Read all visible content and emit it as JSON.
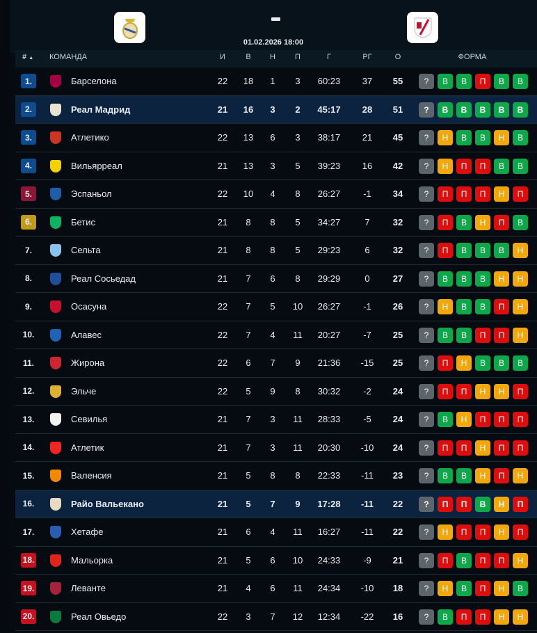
{
  "match": {
    "home_crest": "real-madrid-crest",
    "away_crest": "rayo-vallecano-crest",
    "score": "-",
    "datetime": "01.02.2026 18:00"
  },
  "header": {
    "rank": "#",
    "sort_icon": "▲",
    "team": "КОМАНДА",
    "played": "И",
    "won": "В",
    "drawn": "Н",
    "lost": "П",
    "goals": "Г",
    "diff": "РГ",
    "points": "О",
    "form": "ФОРМА"
  },
  "colors": {
    "W": "#0ea84a",
    "D": "#f2a70d",
    "L": "#dd0e0e",
    "next": "#5c646c",
    "cl": "#0e4c8f",
    "el": "#8a1738",
    "conf": "#c19a1a",
    "releg": "#c8101e",
    "highlight": "#0c2340"
  },
  "form_labels": {
    "W": "В",
    "D": "Н",
    "L": "П",
    "next": "?"
  },
  "rows": [
    {
      "rank": "1.",
      "zone": "cl",
      "team": "Барселона",
      "logo": "#a50044",
      "p": "22",
      "w": "18",
      "d": "1",
      "l": "3",
      "g": "60:23",
      "gd": "37",
      "pts": "55",
      "form": [
        "W",
        "W",
        "L",
        "W",
        "W"
      ]
    },
    {
      "rank": "2.",
      "zone": "cl",
      "team": "Реал Мадрид",
      "logo": "#e8e4d0",
      "hl": true,
      "p": "21",
      "w": "16",
      "d": "3",
      "l": "2",
      "g": "45:17",
      "gd": "28",
      "pts": "51",
      "form": [
        "W",
        "W",
        "W",
        "W",
        "W"
      ]
    },
    {
      "rank": "3.",
      "zone": "cl",
      "team": "Атлетико",
      "logo": "#cb3524",
      "p": "22",
      "w": "13",
      "d": "6",
      "l": "3",
      "g": "38:17",
      "gd": "21",
      "pts": "45",
      "form": [
        "D",
        "W",
        "W",
        "D",
        "W"
      ]
    },
    {
      "rank": "4.",
      "zone": "cl",
      "team": "Вильярреал",
      "logo": "#f5d100",
      "p": "21",
      "w": "13",
      "d": "3",
      "l": "5",
      "g": "39:23",
      "gd": "16",
      "pts": "42",
      "form": [
        "D",
        "L",
        "L",
        "W",
        "W"
      ]
    },
    {
      "rank": "5.",
      "zone": "el",
      "team": "Эспаньол",
      "logo": "#1d5ea8",
      "p": "22",
      "w": "10",
      "d": "4",
      "l": "8",
      "g": "26:27",
      "gd": "-1",
      "pts": "34",
      "form": [
        "L",
        "L",
        "L",
        "D",
        "L"
      ]
    },
    {
      "rank": "6.",
      "zone": "conf",
      "team": "Бетис",
      "logo": "#0bb363",
      "p": "21",
      "w": "8",
      "d": "8",
      "l": "5",
      "g": "34:27",
      "gd": "7",
      "pts": "32",
      "form": [
        "L",
        "W",
        "D",
        "L",
        "W"
      ]
    },
    {
      "rank": "7.",
      "zone": "",
      "team": "Сельта",
      "logo": "#8ac3ee",
      "p": "21",
      "w": "8",
      "d": "8",
      "l": "5",
      "g": "29:23",
      "gd": "6",
      "pts": "32",
      "form": [
        "L",
        "W",
        "W",
        "W",
        "D"
      ]
    },
    {
      "rank": "8.",
      "zone": "",
      "team": "Реал Сосьедад",
      "logo": "#1f4f9c",
      "p": "21",
      "w": "7",
      "d": "6",
      "l": "8",
      "g": "29:29",
      "gd": "0",
      "pts": "27",
      "form": [
        "W",
        "W",
        "W",
        "D",
        "D"
      ]
    },
    {
      "rank": "9.",
      "zone": "",
      "team": "Осасуна",
      "logo": "#c6102e",
      "p": "22",
      "w": "7",
      "d": "5",
      "l": "10",
      "g": "26:27",
      "gd": "-1",
      "pts": "26",
      "form": [
        "D",
        "W",
        "W",
        "L",
        "D"
      ]
    },
    {
      "rank": "10.",
      "zone": "",
      "team": "Алавес",
      "logo": "#1e63b5",
      "p": "22",
      "w": "7",
      "d": "4",
      "l": "11",
      "g": "20:27",
      "gd": "-7",
      "pts": "25",
      "form": [
        "W",
        "W",
        "L",
        "L",
        "D"
      ]
    },
    {
      "rank": "11.",
      "zone": "",
      "team": "Жирона",
      "logo": "#cd2534",
      "p": "22",
      "w": "6",
      "d": "7",
      "l": "9",
      "g": "21:36",
      "gd": "-15",
      "pts": "25",
      "form": [
        "L",
        "D",
        "W",
        "W",
        "W"
      ]
    },
    {
      "rank": "12.",
      "zone": "",
      "team": "Эльче",
      "logo": "#e0b030",
      "p": "22",
      "w": "5",
      "d": "9",
      "l": "8",
      "g": "30:32",
      "gd": "-2",
      "pts": "24",
      "form": [
        "L",
        "L",
        "D",
        "D",
        "L"
      ]
    },
    {
      "rank": "13.",
      "zone": "",
      "team": "Севилья",
      "logo": "#f2f2f2",
      "p": "21",
      "w": "7",
      "d": "3",
      "l": "11",
      "g": "28:33",
      "gd": "-5",
      "pts": "24",
      "form": [
        "W",
        "D",
        "L",
        "L",
        "L"
      ]
    },
    {
      "rank": "14.",
      "zone": "",
      "team": "Атлетик",
      "logo": "#ee2523",
      "p": "21",
      "w": "7",
      "d": "3",
      "l": "11",
      "g": "20:30",
      "gd": "-10",
      "pts": "24",
      "form": [
        "L",
        "L",
        "D",
        "L",
        "L"
      ]
    },
    {
      "rank": "15.",
      "zone": "",
      "team": "Валенсия",
      "logo": "#f18a00",
      "p": "21",
      "w": "5",
      "d": "8",
      "l": "8",
      "g": "22:33",
      "gd": "-11",
      "pts": "23",
      "form": [
        "W",
        "W",
        "D",
        "L",
        "D"
      ]
    },
    {
      "rank": "16.",
      "zone": "",
      "team": "Райо Вальекано",
      "logo": "#e8dcc0",
      "hl": true,
      "p": "21",
      "w": "5",
      "d": "7",
      "l": "9",
      "g": "17:28",
      "gd": "-11",
      "pts": "22",
      "form": [
        "L",
        "L",
        "W",
        "D",
        "L"
      ]
    },
    {
      "rank": "17.",
      "zone": "",
      "team": "Хетафе",
      "logo": "#2a5db0",
      "p": "21",
      "w": "6",
      "d": "4",
      "l": "11",
      "g": "16:27",
      "gd": "-11",
      "pts": "22",
      "form": [
        "D",
        "L",
        "L",
        "D",
        "L"
      ]
    },
    {
      "rank": "18.",
      "zone": "releg",
      "team": "Мальорка",
      "logo": "#e2231a",
      "p": "21",
      "w": "5",
      "d": "6",
      "l": "10",
      "g": "24:33",
      "gd": "-9",
      "pts": "21",
      "form": [
        "L",
        "W",
        "L",
        "L",
        "D"
      ]
    },
    {
      "rank": "19.",
      "zone": "releg",
      "team": "Леванте",
      "logo": "#a4223a",
      "p": "21",
      "w": "4",
      "d": "6",
      "l": "11",
      "g": "24:34",
      "gd": "-10",
      "pts": "18",
      "form": [
        "D",
        "W",
        "L",
        "D",
        "W"
      ]
    },
    {
      "rank": "20.",
      "zone": "releg",
      "team": "Реал Овьедо",
      "logo": "#0a7a3e",
      "p": "22",
      "w": "3",
      "d": "7",
      "l": "12",
      "g": "12:34",
      "gd": "-22",
      "pts": "16",
      "form": [
        "W",
        "L",
        "L",
        "D",
        "D"
      ]
    }
  ]
}
